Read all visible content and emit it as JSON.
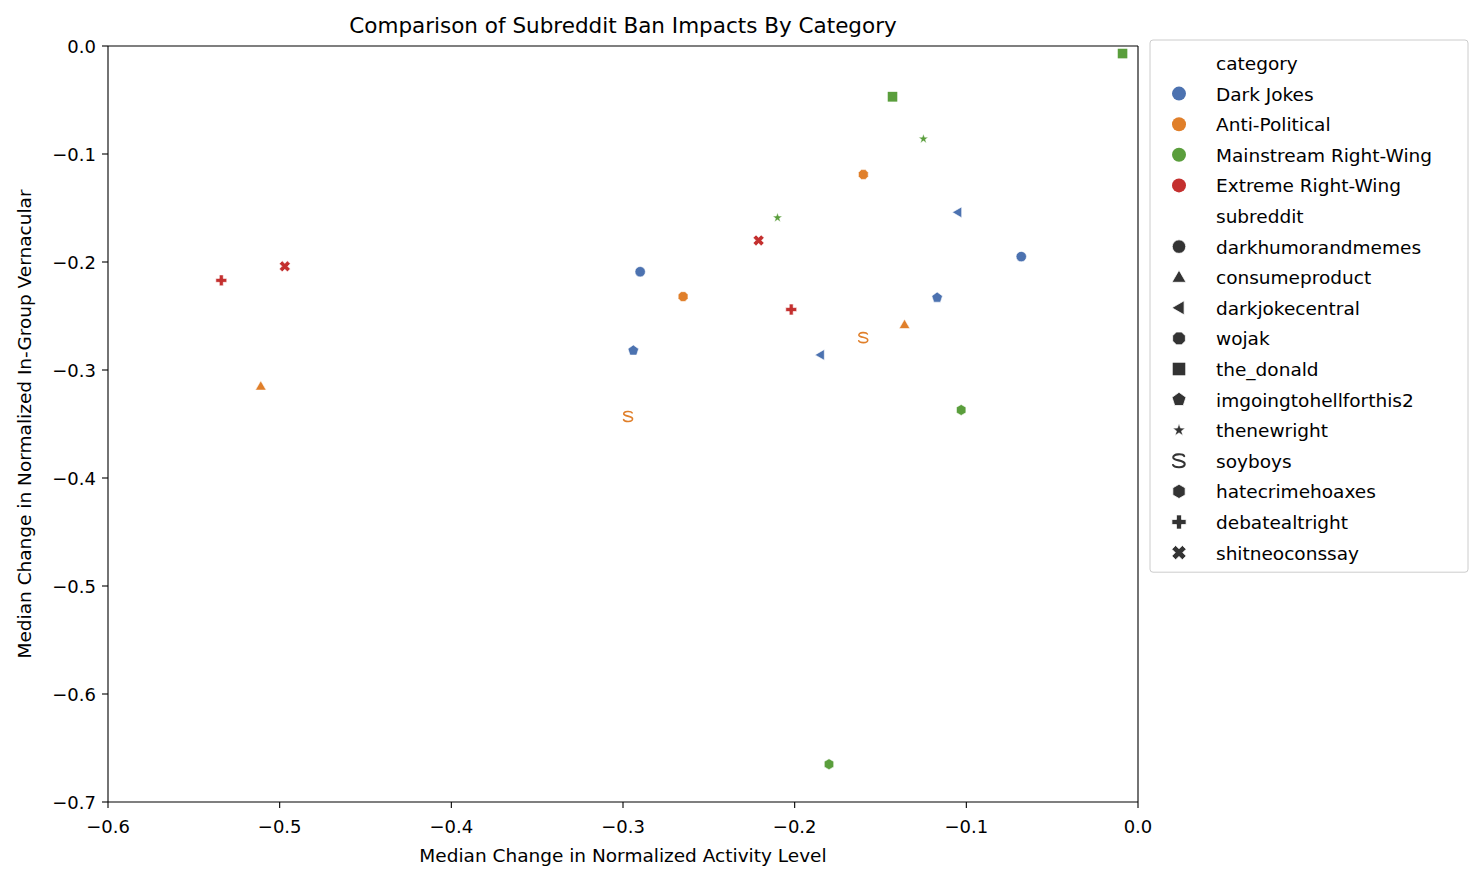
{
  "chart_data": {
    "type": "scatter",
    "title": "Comparison of Subreddit Ban Impacts By Category",
    "x_label": "Median Change in Normalized Activity Level",
    "y_label": "Median Change in Normalized In-Group Vernacular",
    "xlim": [
      -0.6,
      0
    ],
    "ylim": [
      -0.7,
      0
    ],
    "xticks": [
      {
        "value": -0.6,
        "label": "−0.6"
      },
      {
        "value": -0.5,
        "label": "−0.5"
      },
      {
        "value": -0.4,
        "label": "−0.4"
      },
      {
        "value": -0.3,
        "label": "−0.3"
      },
      {
        "value": -0.2,
        "label": "−0.2"
      },
      {
        "value": -0.1,
        "label": "−0.1"
      },
      {
        "value": 0,
        "label": "0.0"
      }
    ],
    "yticks": [
      {
        "value": -0.7,
        "label": "−0.7"
      },
      {
        "value": -0.6,
        "label": "−0.6"
      },
      {
        "value": -0.5,
        "label": "−0.5"
      },
      {
        "value": -0.4,
        "label": "−0.4"
      },
      {
        "value": -0.3,
        "label": "−0.3"
      },
      {
        "value": -0.2,
        "label": "−0.2"
      },
      {
        "value": -0.1,
        "label": "−0.1"
      },
      {
        "value": 0,
        "label": "0.0"
      }
    ],
    "grid": false,
    "legend": "outside right",
    "legend_titles": [
      "category",
      "subreddit"
    ],
    "groups": [
      {
        "name": "Dark Jokes",
        "color": "#4c72b0"
      },
      {
        "name": "Anti-Political",
        "color": "#e07f2a"
      },
      {
        "name": "Mainstream Right-Wing",
        "color": "#5a9e3c"
      },
      {
        "name": "Extreme Right-Wing",
        "color": "#c4302f"
      }
    ],
    "series": [
      {
        "name": "darkhumorandmemes",
        "group": "Dark Jokes",
        "color": "#4c72b0",
        "marker": "circle",
        "x": [
          -0.29,
          -0.068
        ],
        "values": [
          -0.209,
          -0.195
        ]
      },
      {
        "name": "consumeproduct",
        "group": "Anti-Political",
        "color": "#e07f2a",
        "marker": "triangle-up",
        "x": [
          -0.136,
          -0.511
        ],
        "values": [
          -0.258,
          -0.315
        ]
      },
      {
        "name": "darkjokecentral",
        "group": "Dark Jokes",
        "color": "#4c72b0",
        "marker": "triangle-left",
        "x": [
          -0.105,
          -0.185
        ],
        "values": [
          -0.154,
          -0.286
        ]
      },
      {
        "name": "wojak",
        "group": "Anti-Political",
        "color": "#e07f2a",
        "marker": "octagon",
        "x": [
          -0.16,
          -0.265
        ],
        "values": [
          -0.119,
          -0.232
        ]
      },
      {
        "name": "the_donald",
        "group": "Mainstream Right-Wing",
        "color": "#5a9e3c",
        "marker": "square",
        "x": [
          -0.009,
          -0.143
        ],
        "values": [
          -0.007,
          -0.047
        ]
      },
      {
        "name": "imgoingtohellforthis2",
        "group": "Dark Jokes",
        "color": "#4c72b0",
        "marker": "pentagon",
        "x": [
          -0.117,
          -0.294
        ],
        "values": [
          -0.233,
          -0.282
        ]
      },
      {
        "name": "thenewright",
        "group": "Mainstream Right-Wing",
        "color": "#5a9e3c",
        "marker": "star",
        "x": [
          -0.125,
          -0.21
        ],
        "values": [
          -0.086,
          -0.159
        ]
      },
      {
        "name": "soyboys",
        "group": "Anti-Political",
        "color": "#e07f2a",
        "marker": "letter-s",
        "x": [
          -0.16,
          -0.297
        ],
        "values": [
          -0.27,
          -0.343
        ]
      },
      {
        "name": "hatecrimehoaxes",
        "group": "Mainstream Right-Wing",
        "color": "#5a9e3c",
        "marker": "hexagon",
        "x": [
          -0.103,
          -0.18
        ],
        "values": [
          -0.337,
          -0.665
        ]
      },
      {
        "name": "debatealtright",
        "group": "Extreme Right-Wing",
        "color": "#c4302f",
        "marker": "plus",
        "x": [
          -0.534,
          -0.202
        ],
        "values": [
          -0.217,
          -0.244
        ]
      },
      {
        "name": "shitneoconssay",
        "group": "Extreme Right-Wing",
        "color": "#c4302f",
        "marker": "x",
        "x": [
          -0.497,
          -0.221
        ],
        "values": [
          -0.204,
          -0.18
        ]
      }
    ]
  }
}
